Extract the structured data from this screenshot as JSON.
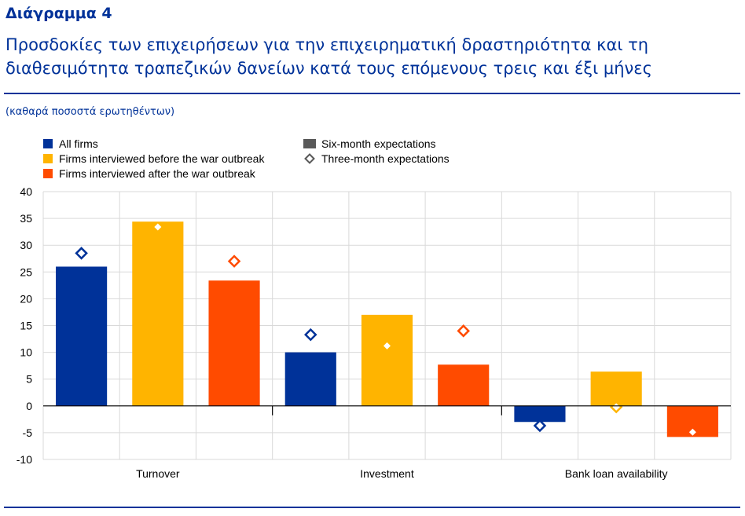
{
  "figure": {
    "label": "Διάγραμμα 4",
    "title": "Προσδοκίες των επιχειρήσεων για την επιχειρηματική δραστηριότητα και τη διαθεσιμότητα τραπεζικών δανείων κατά τους επόμενους τρεις και έξι μήνες",
    "unit_note": "(καθαρά ποσοστά ερωτηθέντων)"
  },
  "chart_data": {
    "type": "bar",
    "categories": [
      "Turnover",
      "Investment",
      "Bank loan availability"
    ],
    "ylim": [
      -10,
      40
    ],
    "yticks": [
      -10,
      -5,
      0,
      5,
      10,
      15,
      20,
      25,
      30,
      35,
      40
    ],
    "grid": true,
    "legend_position": "top-left",
    "series": [
      {
        "name": "All firms",
        "color": "#003299",
        "six_month": [
          26,
          10,
          -3
        ],
        "three_month": [
          28.5,
          13.3,
          -3.7
        ]
      },
      {
        "name": "Firms interviewed before the war outbreak",
        "color": "#FFB400",
        "six_month": [
          34.4,
          17,
          6.4
        ],
        "three_month": [
          33.4,
          11.2,
          -0.2
        ]
      },
      {
        "name": "Firms interviewed after the war outbreak",
        "color": "#FF4B00",
        "six_month": [
          23.4,
          7.7,
          -5.8
        ],
        "three_month": [
          27,
          14,
          -4.9
        ]
      }
    ],
    "markers": [
      {
        "name": "Six-month expectations",
        "symbol": "square",
        "color": "#595959"
      },
      {
        "name": "Three-month expectations",
        "symbol": "diamond",
        "color": "#595959"
      }
    ]
  }
}
